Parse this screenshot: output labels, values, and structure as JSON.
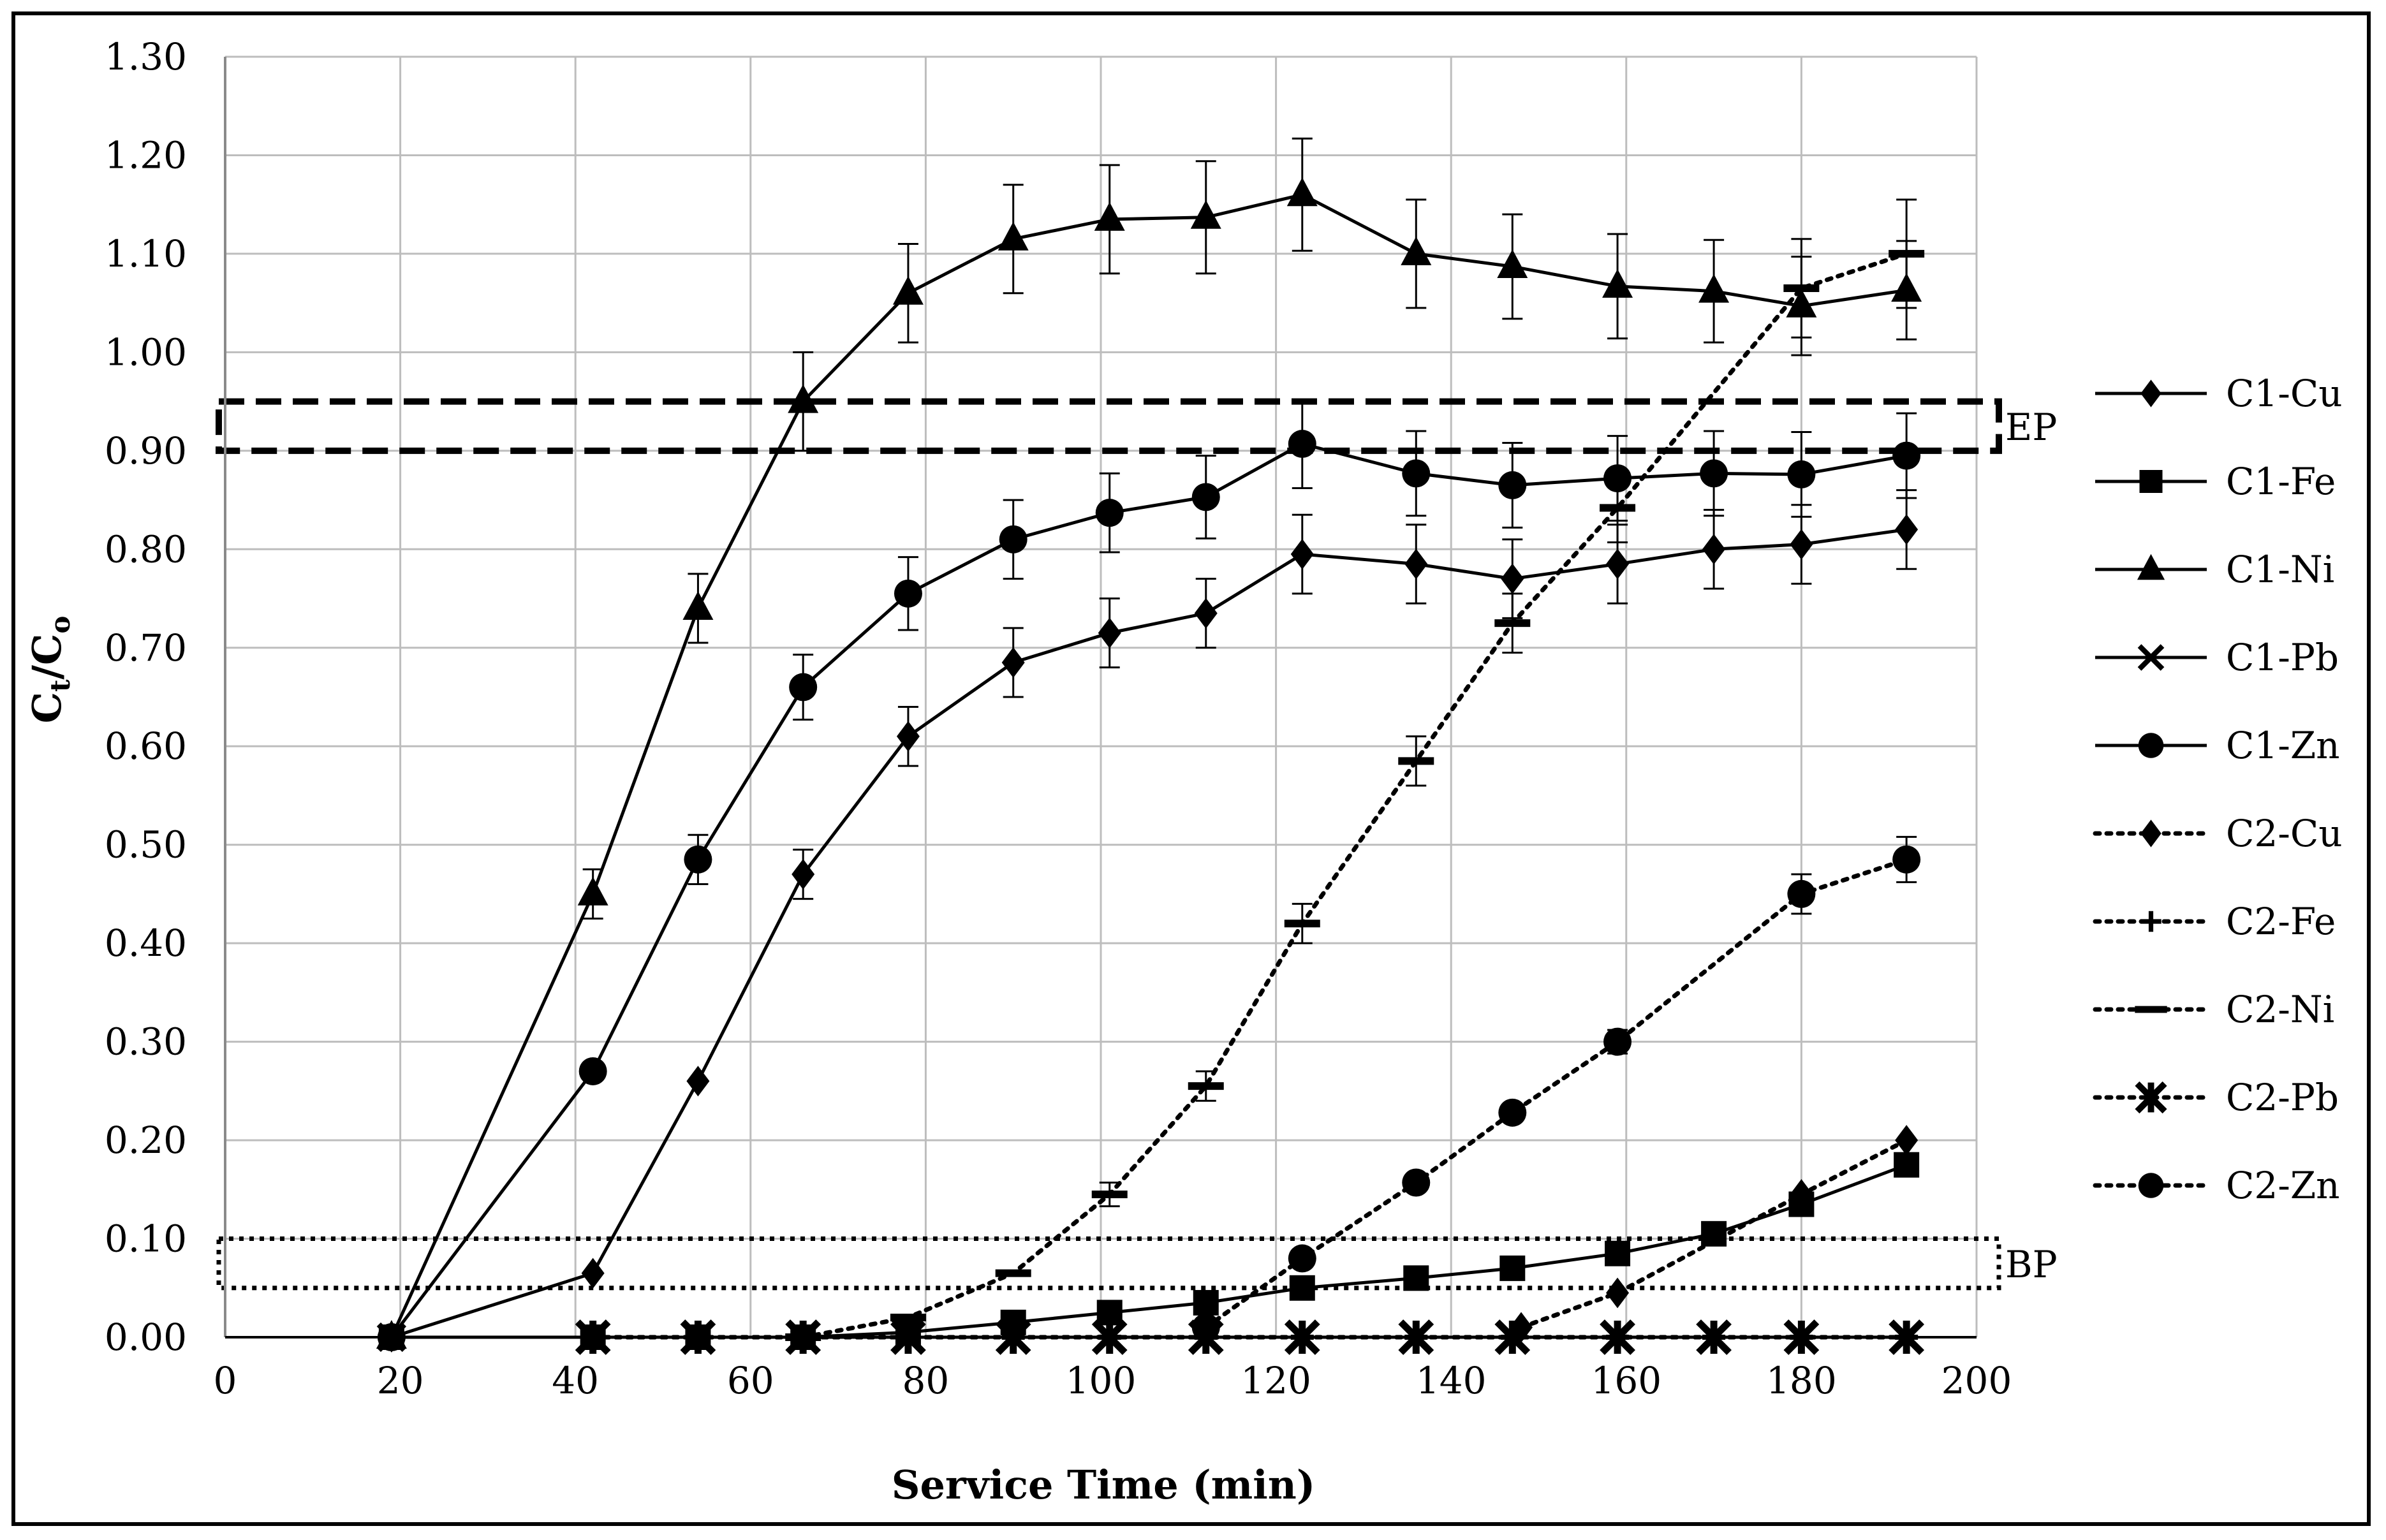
{
  "chart_data": {
    "type": "line",
    "xlabel": "Service Time (min)",
    "ylabel": "Ct/Co",
    "ylabel_main": "C",
    "ylabel_sub1": "t",
    "ylabel_slash": "/C",
    "ylabel_sub2": "o",
    "xlim": [
      0,
      200
    ],
    "ylim": [
      0,
      1.3
    ],
    "x_ticks": [
      "0",
      "20",
      "40",
      "60",
      "80",
      "100",
      "120",
      "140",
      "160",
      "180",
      "200"
    ],
    "y_ticks": [
      "0.00",
      "0.10",
      "0.20",
      "0.30",
      "0.40",
      "0.50",
      "0.60",
      "0.70",
      "0.80",
      "0.90",
      "1.00",
      "1.10",
      "1.20",
      "1.30"
    ],
    "grid": true,
    "legend_position": "right",
    "bands": [
      {
        "label": "EP",
        "y_range": [
          0.9,
          0.95
        ],
        "style": "dashed"
      },
      {
        "label": "BP",
        "y_range": [
          0.05,
          0.1
        ],
        "style": "dotted"
      }
    ],
    "series": [
      {
        "name": "C1-Cu",
        "line": "solid",
        "marker": "diamond",
        "x": [
          19,
          42,
          54,
          66,
          78,
          90,
          101,
          112,
          123,
          136,
          147,
          159,
          170,
          180,
          192
        ],
        "y": [
          0.0,
          0.065,
          0.26,
          0.47,
          0.61,
          0.685,
          0.715,
          0.735,
          0.795,
          0.785,
          0.77,
          0.785,
          0.8,
          0.805,
          0.82
        ],
        "err": [
          0,
          0,
          0,
          0.025,
          0.03,
          0.035,
          0.035,
          0.035,
          0.04,
          0.04,
          0.04,
          0.04,
          0.04,
          0.04,
          0.04
        ]
      },
      {
        "name": "C1-Fe",
        "line": "solid",
        "marker": "square",
        "x": [
          19,
          42,
          54,
          66,
          78,
          90,
          101,
          112,
          123,
          136,
          147,
          159,
          170,
          180,
          192
        ],
        "y": [
          0.0,
          0.0,
          0.0,
          0.0,
          0.005,
          0.015,
          0.025,
          0.035,
          0.05,
          0.06,
          0.07,
          0.085,
          0.105,
          0.135,
          0.175
        ],
        "err": [
          0,
          0,
          0,
          0,
          0,
          0,
          0,
          0,
          0,
          0,
          0,
          0,
          0,
          0,
          0
        ]
      },
      {
        "name": "C1-Ni",
        "line": "solid",
        "marker": "triangle",
        "x": [
          19,
          42,
          54,
          66,
          78,
          90,
          101,
          112,
          123,
          136,
          147,
          159,
          170,
          180,
          192
        ],
        "y": [
          0.0,
          0.45,
          0.74,
          0.95,
          1.06,
          1.115,
          1.135,
          1.137,
          1.16,
          1.1,
          1.087,
          1.067,
          1.062,
          1.047,
          1.063
        ],
        "err": [
          0,
          0.025,
          0.035,
          0.05,
          0.05,
          0.055,
          0.055,
          0.057,
          0.057,
          0.055,
          0.053,
          0.053,
          0.052,
          0.05,
          0.05
        ]
      },
      {
        "name": "C1-Pb",
        "line": "solid",
        "marker": "x",
        "x": [
          19,
          42,
          54,
          66,
          78,
          90,
          101,
          112,
          123,
          136,
          147,
          159,
          170,
          180,
          192
        ],
        "y": [
          0.0,
          0.0,
          0.0,
          0.0,
          0.0,
          0.0,
          0.0,
          0.0,
          0.0,
          0.0,
          0.0,
          0.0,
          0.0,
          0.0,
          0.0
        ],
        "err": [
          0,
          0,
          0,
          0,
          0,
          0,
          0,
          0,
          0,
          0,
          0,
          0,
          0,
          0,
          0
        ]
      },
      {
        "name": "C1-Zn",
        "line": "solid",
        "marker": "circle",
        "x": [
          19,
          42,
          54,
          66,
          78,
          90,
          101,
          112,
          123,
          136,
          147,
          159,
          170,
          180,
          192
        ],
        "y": [
          0.0,
          0.27,
          0.485,
          0.66,
          0.755,
          0.81,
          0.837,
          0.853,
          0.907,
          0.877,
          0.865,
          0.872,
          0.877,
          0.876,
          0.895
        ],
        "err": [
          0,
          0,
          0.025,
          0.033,
          0.037,
          0.04,
          0.04,
          0.042,
          0.045,
          0.043,
          0.043,
          0.043,
          0.043,
          0.043,
          0.043
        ]
      },
      {
        "name": "C2-Cu",
        "line": "dotted",
        "marker": "diamond",
        "x": [
          148,
          159,
          180,
          192
        ],
        "y": [
          0.01,
          0.045,
          0.145,
          0.2
        ],
        "err": [
          0,
          0,
          0,
          0
        ]
      },
      {
        "name": "C2-Fe",
        "line": "dotted",
        "marker": "plus",
        "x": [
          42,
          54,
          66,
          78,
          90,
          101,
          112,
          123,
          136,
          147,
          159,
          170,
          180,
          192
        ],
        "y": [
          0,
          0,
          0,
          0,
          0,
          0,
          0,
          0,
          0,
          0,
          0,
          0,
          0,
          0
        ],
        "err": [
          0,
          0,
          0,
          0,
          0,
          0,
          0,
          0,
          0,
          0,
          0,
          0,
          0,
          0
        ]
      },
      {
        "name": "C2-Ni",
        "line": "dotted",
        "marker": "dash",
        "x": [
          66,
          78,
          90,
          101,
          112,
          123,
          136,
          147,
          159,
          180,
          192
        ],
        "y": [
          0.0,
          0.02,
          0.065,
          0.145,
          0.255,
          0.42,
          0.585,
          0.725,
          0.842,
          1.065,
          1.1
        ],
        "err": [
          0,
          0,
          0,
          0.012,
          0.015,
          0.02,
          0.025,
          0.03,
          0.035,
          0.05,
          0.055
        ]
      },
      {
        "name": "C2-Pb",
        "line": "dotted",
        "marker": "asterisk",
        "x": [
          42,
          54,
          66,
          78,
          90,
          101,
          112,
          123,
          136,
          147,
          159,
          170,
          180,
          192
        ],
        "y": [
          0,
          0,
          0,
          0,
          0,
          0,
          0,
          0,
          0,
          0,
          0,
          0,
          0,
          0
        ],
        "err": [
          0,
          0,
          0,
          0,
          0,
          0,
          0,
          0,
          0,
          0,
          0,
          0,
          0,
          0
        ]
      },
      {
        "name": "C2-Zn",
        "line": "dotted",
        "marker": "circle",
        "x": [
          112,
          123,
          136,
          147,
          159,
          180,
          192
        ],
        "y": [
          0.01,
          0.08,
          0.157,
          0.228,
          0.3,
          0.45,
          0.485
        ],
        "err": [
          0,
          0,
          0,
          0,
          0.012,
          0.02,
          0.023
        ]
      }
    ]
  }
}
